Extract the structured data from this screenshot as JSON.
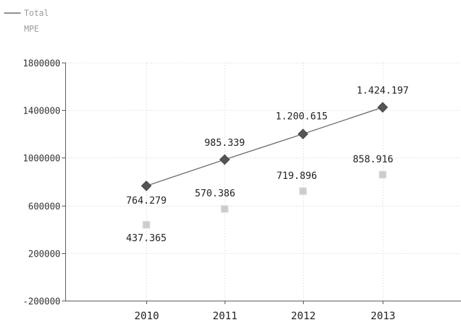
{
  "chart_data": {
    "type": "line",
    "title": "",
    "xlabel": "",
    "ylabel": "",
    "categories": [
      "2010",
      "2011",
      "2012",
      "2013"
    ],
    "ylim": [
      -200000,
      1800000
    ],
    "yticks": [
      1800000,
      1400000,
      1000000,
      600000,
      200000,
      -200000
    ],
    "ytick_labels": [
      "1800000",
      "1400000",
      "1000000",
      "600000",
      "200000",
      "-200000"
    ],
    "grid": true,
    "legend_position": "top-left",
    "series": [
      {
        "name": "Total",
        "style": "line-with-diamond-markers",
        "color": "#555555",
        "values": [
          764279,
          985339,
          1200615,
          1424197
        ],
        "labels": [
          "764.279",
          "985.339",
          "1.200.615",
          "1.424.197"
        ]
      },
      {
        "name": "MPE",
        "style": "square-markers-no-line",
        "color": "#cccccc",
        "values": [
          437365,
          570386,
          719896,
          858916
        ],
        "labels": [
          "437.365",
          "570.386",
          "719.896",
          "858.916"
        ]
      }
    ]
  }
}
